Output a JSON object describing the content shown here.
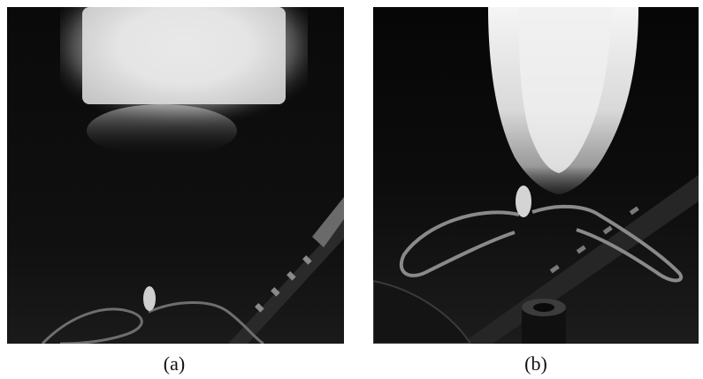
{
  "figure": {
    "panels": [
      {
        "caption": "(a)"
      },
      {
        "caption": "(b)"
      }
    ]
  },
  "colors": {
    "background": "#ffffff",
    "photo_dark": "#050505",
    "glow": "#f2f2f2"
  }
}
